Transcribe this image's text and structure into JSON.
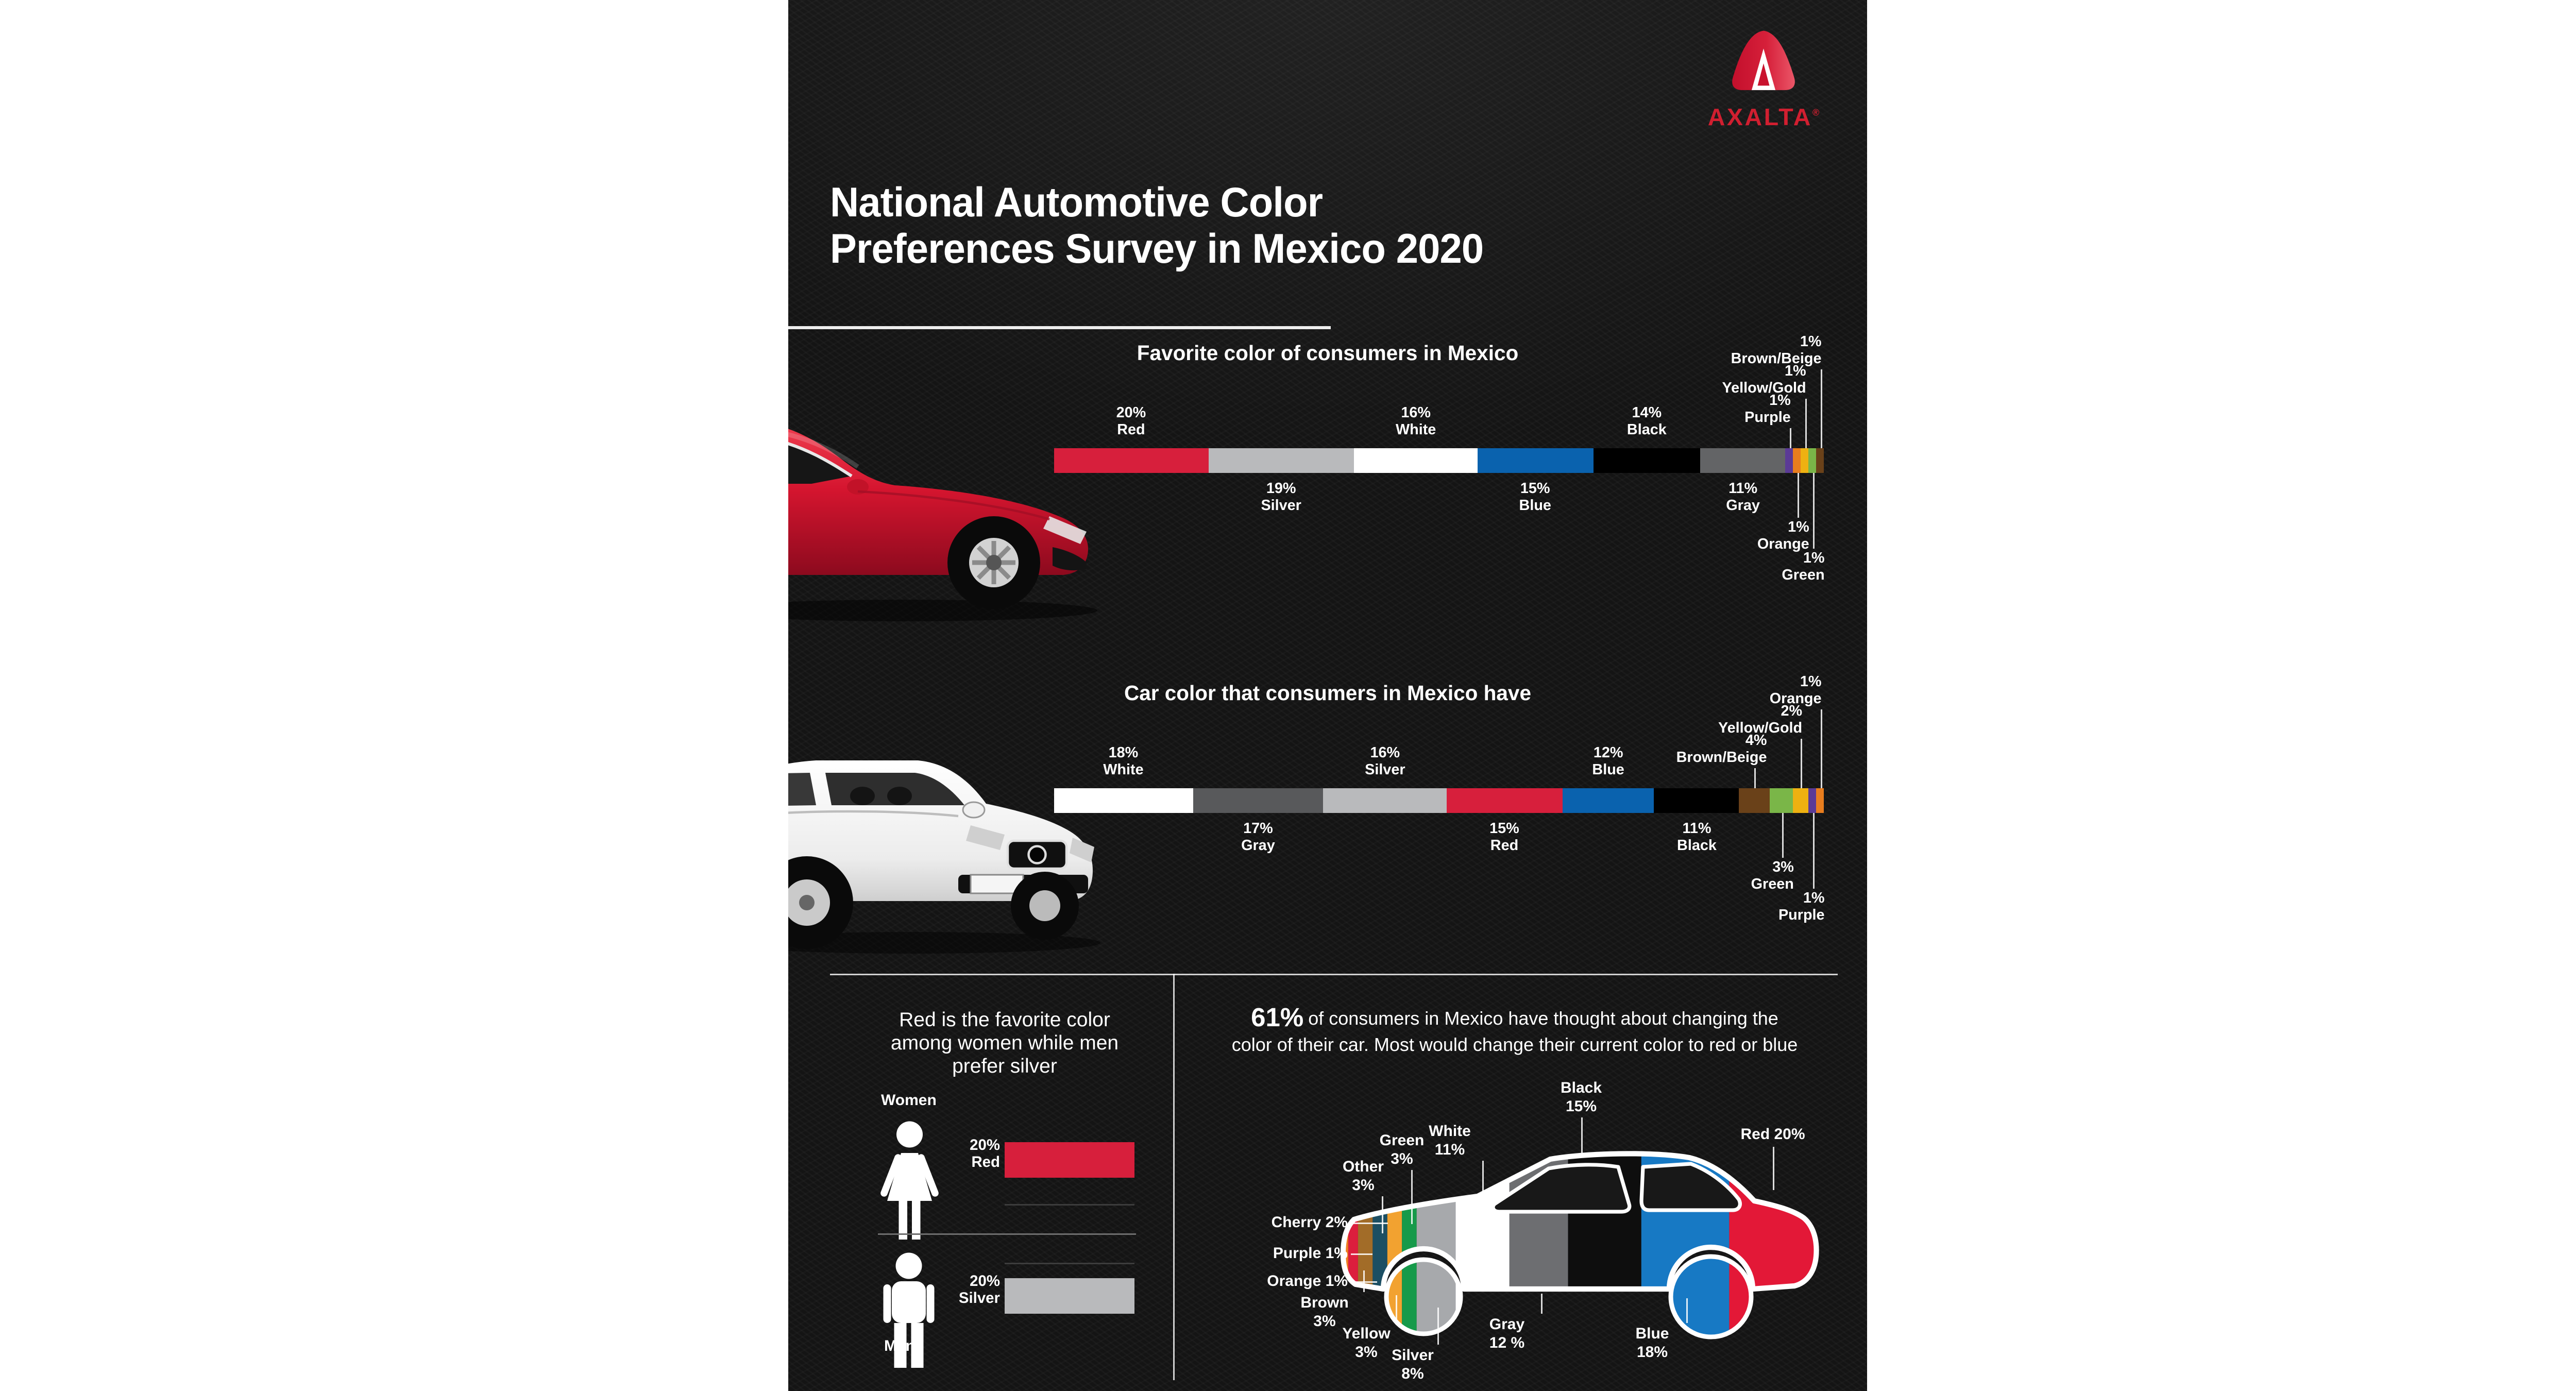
{
  "brand": {
    "name": "AXALTA",
    "registered": "®",
    "logo_color": "#d11f30"
  },
  "header": {
    "title_lines": [
      "National Automotive Color",
      "Preferences Survey in Mexico 2020"
    ]
  },
  "panel_colors": {
    "background": "#141414",
    "text": "#ffffff",
    "accent_red": "#d71f3c"
  },
  "chart_data": [
    {
      "id": "favorite-color",
      "type": "bar",
      "stacked_pct": true,
      "title": "Favorite color of consumers in Mexico",
      "segments": [
        {
          "name": "Red",
          "pct": 20,
          "color": "#d71f3c",
          "label": "above"
        },
        {
          "name": "Silver",
          "pct": 19,
          "color": "#b9babc",
          "label": "below"
        },
        {
          "name": "White",
          "pct": 16,
          "color": "#ffffff",
          "label": "above"
        },
        {
          "name": "Blue",
          "pct": 15,
          "color": "#0a62ae",
          "label": "below"
        },
        {
          "name": "Black",
          "pct": 14,
          "color": "#000000",
          "label": "above"
        },
        {
          "name": "Gray",
          "pct": 11,
          "color": "#636466",
          "label": "below"
        },
        {
          "name": "Purple",
          "pct": 1,
          "color": "#5b3a96",
          "label": "leader-above",
          "row": 0
        },
        {
          "name": "Orange",
          "pct": 1,
          "color": "#e87d1e",
          "label": "leader-below",
          "row": 0
        },
        {
          "name": "Yellow/Gold",
          "pct": 1,
          "color": "#eeb111",
          "label": "leader-above",
          "row": 1
        },
        {
          "name": "Green",
          "pct": 1,
          "color": "#7ab648",
          "label": "leader-below",
          "row": 1
        },
        {
          "name": "Brown/Beige",
          "pct": 1,
          "color": "#6a4119",
          "label": "leader-above",
          "row": 2
        }
      ]
    },
    {
      "id": "car-color-have",
      "type": "bar",
      "stacked_pct": true,
      "title": "Car color that consumers in Mexico have",
      "segments": [
        {
          "name": "White",
          "pct": 18,
          "color": "#ffffff",
          "label": "above"
        },
        {
          "name": "Gray",
          "pct": 17,
          "color": "#58595b",
          "label": "below"
        },
        {
          "name": "Silver",
          "pct": 16,
          "color": "#b9babc",
          "label": "above"
        },
        {
          "name": "Red",
          "pct": 15,
          "color": "#d71f3c",
          "label": "below"
        },
        {
          "name": "Blue",
          "pct": 12,
          "color": "#0a62ae",
          "label": "above"
        },
        {
          "name": "Black",
          "pct": 11,
          "color": "#000000",
          "label": "below"
        },
        {
          "name": "Brown/Beige",
          "pct": 4,
          "color": "#6a4119",
          "label": "leader-above",
          "row": 0
        },
        {
          "name": "Green",
          "pct": 3,
          "color": "#7ab648",
          "label": "leader-below",
          "row": 0
        },
        {
          "name": "Yellow/Gold",
          "pct": 2,
          "color": "#eeb111",
          "label": "leader-above",
          "row": 1
        },
        {
          "name": "Purple",
          "pct": 1,
          "color": "#5b3a96",
          "label": "leader-below",
          "row": 1
        },
        {
          "name": "Orange",
          "pct": 1,
          "color": "#e87d1e",
          "label": "leader-above",
          "row": 2
        }
      ]
    },
    {
      "id": "gender-preference",
      "type": "bar",
      "title_lines": [
        "Red is the favorite color",
        "among women while men",
        "prefer silver"
      ],
      "rows": [
        {
          "group": "Women",
          "pct_label": "20%",
          "color_label": "Red",
          "pct": 20,
          "color": "#d71f3c"
        },
        {
          "group": "Men",
          "pct_label": "20%",
          "color_label": "Silver",
          "pct": 20,
          "color": "#b9babc"
        }
      ]
    },
    {
      "id": "change-color",
      "type": "car-diagram",
      "note_highlight": "61%",
      "note_lines": [
        "of consumers in Mexico have thought about changing the",
        "color of their car. Most would change their current color to red or blue"
      ],
      "segments": [
        {
          "name": "Purple",
          "pct": 1,
          "pct_text": "1%",
          "color": "#6c3f97",
          "label_side": "left"
        },
        {
          "name": "Orange",
          "pct": 1,
          "pct_text": "1%",
          "color": "#ef7d22",
          "label_side": "left"
        },
        {
          "name": "Cherry",
          "pct": 2,
          "pct_text": "2%",
          "color": "#dc1e3d",
          "label_side": "left"
        },
        {
          "name": "Brown",
          "pct": 3,
          "pct_text": "3%",
          "color": "#a26c28",
          "label_side": "bottom"
        },
        {
          "name": "Other",
          "pct": 3,
          "pct_text": "3%",
          "color": "#1c4f63",
          "label_side": "top"
        },
        {
          "name": "Yellow",
          "pct": 3,
          "pct_text": "3%",
          "color": "#f2a230",
          "label_side": "bottom"
        },
        {
          "name": "Green",
          "pct": 3,
          "pct_text": "3%",
          "color": "#169a4a",
          "label_side": "top"
        },
        {
          "name": "Silver",
          "pct": 8,
          "pct_text": "8%",
          "color": "#a7a9ac",
          "label_side": "bottom"
        },
        {
          "name": "White",
          "pct": 11,
          "pct_text": "11%",
          "color": "#ffffff",
          "label_side": "top"
        },
        {
          "name": "Gray",
          "pct": 12,
          "pct_text": "12 %",
          "color": "#6d6e71",
          "label_side": "bottom"
        },
        {
          "name": "Black",
          "pct": 15,
          "pct_text": "15%",
          "color": "#0e0e0e",
          "label_side": "top"
        },
        {
          "name": "Blue",
          "pct": 18,
          "pct_text": "18%",
          "color": "#1779c4",
          "label_side": "bottom"
        },
        {
          "name": "Red",
          "pct": 20,
          "pct_text": "20%",
          "color": "#e31837",
          "label_side": "right"
        }
      ]
    }
  ]
}
